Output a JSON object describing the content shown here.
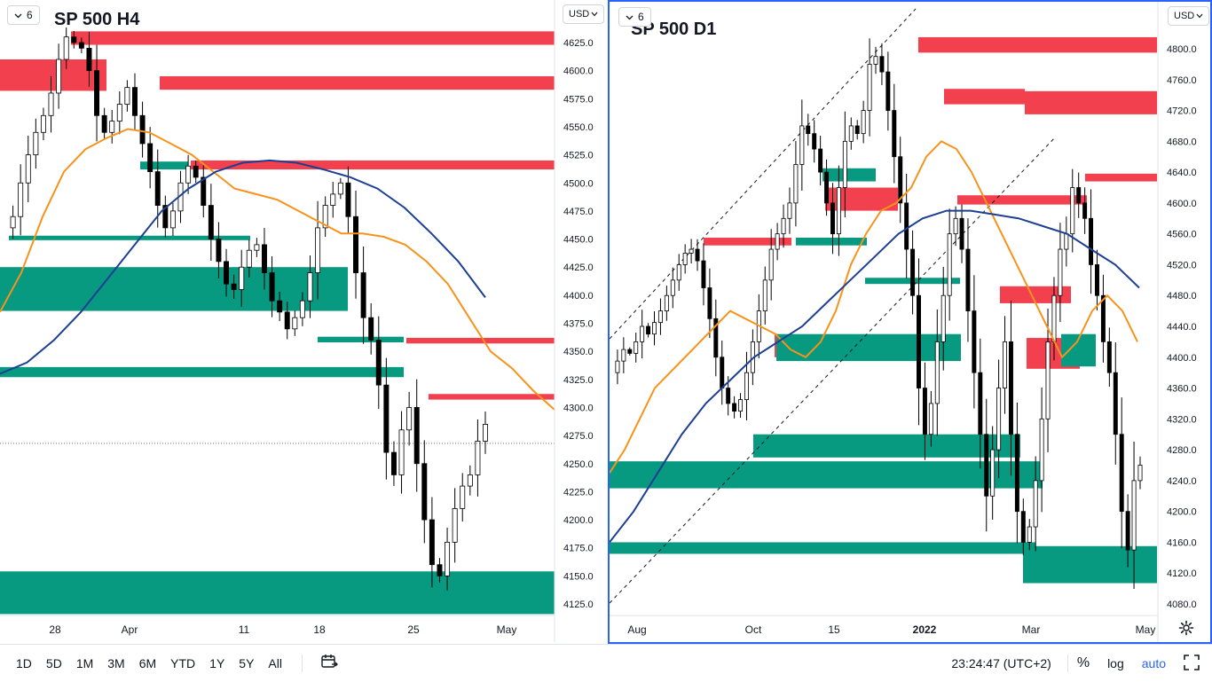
{
  "bottom_bar": {
    "ranges": [
      "1D",
      "5D",
      "1M",
      "3M",
      "6M",
      "YTD",
      "1Y",
      "5Y",
      "All"
    ],
    "clock": "23:24:47 (UTC+2)",
    "percent": "%",
    "log": "log",
    "auto": "auto"
  },
  "colors": {
    "supply_zone": "#f23645",
    "demand_zone": "#089981",
    "ema_fast": "#f7931a",
    "ema_slow": "#1c3f94",
    "candle": "#000000",
    "active_pane_border": "#2962ff",
    "auto_active": "#2962ff"
  },
  "icons": {
    "interval_dropdown": "chevron-down-icon",
    "compare": "calendar-range-icon",
    "fullscreen": "fullscreen-icon",
    "settings": "gear-icon"
  },
  "charts": [
    {
      "title": "SP 500 H4",
      "interval_label": "6",
      "currency": "USD",
      "price_ticks": [
        "4625.0",
        "4600.0",
        "4575.0",
        "4550.0",
        "4525.0",
        "4500.0",
        "4475.0",
        "4450.0",
        "4425.0",
        "4400.0",
        "4375.0",
        "4350.0",
        "4325.0",
        "4300.0",
        "4275.0",
        "4250.0",
        "4225.0",
        "4200.0",
        "4175.0",
        "4150.0",
        "4125.0"
      ],
      "time_ticks": [
        "28",
        "Apr",
        "11",
        "18",
        "25",
        "May"
      ]
    },
    {
      "title": "SP 500 D1",
      "interval_label": "6",
      "currency": "USD",
      "price_ticks": [
        "4800.0",
        "4760.0",
        "4720.0",
        "4680.0",
        "4640.0",
        "4600.0",
        "4560.0",
        "4520.0",
        "4480.0",
        "4440.0",
        "4400.0",
        "4360.0",
        "4320.0",
        "4280.0",
        "4240.0",
        "4200.0",
        "4160.0",
        "4120.0",
        "4080.0"
      ],
      "time_ticks": [
        "Aug",
        "Oct",
        "15",
        "2022",
        "Mar",
        "May"
      ]
    }
  ],
  "chart_data": [
    {
      "type": "candlestick",
      "title": "SP 500 H4",
      "ylim": [
        4115,
        4645
      ],
      "x_ticks": [
        "28",
        "Apr",
        "11",
        "18",
        "25",
        "May"
      ],
      "close_path": [
        4460,
        4470,
        4500,
        4525,
        4545,
        4560,
        4580,
        4610,
        4630,
        4625,
        4620,
        4600,
        4560,
        4545,
        4555,
        4570,
        4585,
        4560,
        4535,
        4510,
        4480,
        4460,
        4475,
        4500,
        4515,
        4505,
        4480,
        4450,
        4430,
        4410,
        4405,
        4425,
        4440,
        4445,
        4420,
        4395,
        4385,
        4370,
        4380,
        4395,
        4420,
        4460,
        4480,
        4490,
        4500,
        4470,
        4420,
        4380,
        4360,
        4320,
        4260,
        4240,
        4280,
        4300,
        4250,
        4200,
        4160,
        4150,
        4180,
        4210,
        4230,
        4240,
        4270,
        4285
      ],
      "indicators": {
        "ema_fast": [
          4385,
          4420,
          4470,
          4510,
          4530,
          4540,
          4548,
          4545,
          4535,
          4525,
          4510,
          4495,
          4490,
          4485,
          4475,
          4465,
          4455,
          4455,
          4452,
          4445,
          4430,
          4410,
          4380,
          4350,
          4335,
          4315,
          4298
        ],
        "ema_slow": [
          4330,
          4340,
          4360,
          4385,
          4415,
          4445,
          4475,
          4495,
          4510,
          4518,
          4520,
          4518,
          4512,
          4505,
          4495,
          4478,
          4455,
          4430,
          4398
        ]
      },
      "zones": [
        {
          "kind": "supply",
          "low": 4623,
          "high": 4635
        },
        {
          "kind": "supply",
          "low": 4582,
          "high": 4610
        },
        {
          "kind": "supply",
          "low": 4583,
          "high": 4595
        },
        {
          "kind": "supply",
          "low": 4512,
          "high": 4520
        },
        {
          "kind": "demand",
          "low": 4512,
          "high": 4519
        },
        {
          "kind": "demand",
          "low": 4449,
          "high": 4453
        },
        {
          "kind": "demand",
          "low": 4386,
          "high": 4425
        },
        {
          "kind": "demand",
          "low": 4358,
          "high": 4363
        },
        {
          "kind": "supply",
          "low": 4357,
          "high": 4362
        },
        {
          "kind": "demand",
          "low": 4327,
          "high": 4336
        },
        {
          "kind": "supply",
          "low": 4307,
          "high": 4312
        },
        {
          "kind": "demand",
          "low": 4116,
          "high": 4154
        }
      ],
      "last_price_line": 4268
    },
    {
      "type": "candlestick",
      "title": "SP 500 D1",
      "ylim": [
        4070,
        4830
      ],
      "x_ticks": [
        "Aug",
        "Oct",
        "15",
        "2022",
        "Mar",
        "May"
      ],
      "close_path": [
        4380,
        4395,
        4410,
        4405,
        4420,
        4440,
        4430,
        4445,
        4460,
        4480,
        4500,
        4520,
        4535,
        4540,
        4525,
        4490,
        4450,
        4400,
        4360,
        4340,
        4330,
        4345,
        4380,
        4420,
        4460,
        4500,
        4540,
        4560,
        4580,
        4600,
        4650,
        4700,
        4690,
        4670,
        4640,
        4600,
        4560,
        4620,
        4680,
        4700,
        4690,
        4720,
        4780,
        4790,
        4770,
        4720,
        4660,
        4600,
        4540,
        4480,
        4360,
        4300,
        4340,
        4420,
        4480,
        4560,
        4580,
        4540,
        4460,
        4380,
        4300,
        4220,
        4280,
        4360,
        4420,
        4300,
        4200,
        4160,
        4180,
        4240,
        4320,
        4420,
        4480,
        4540,
        4560,
        4620,
        4600,
        4580,
        4520,
        4480,
        4420,
        4380,
        4300,
        4200,
        4150,
        4240,
        4260
      ],
      "indicators": {
        "ema_fast": [
          4250,
          4280,
          4320,
          4360,
          4380,
          4400,
          4420,
          4440,
          4460,
          4450,
          4440,
          4430,
          4410,
          4400,
          4420,
          4460,
          4520,
          4560,
          4590,
          4600,
          4620,
          4660,
          4680,
          4670,
          4640,
          4600,
          4560,
          4520,
          4480,
          4440,
          4400,
          4420,
          4460,
          4480,
          4460,
          4420
        ],
        "ema_slow": [
          4160,
          4200,
          4250,
          4300,
          4340,
          4370,
          4400,
          4420,
          4440,
          4470,
          4500,
          4530,
          4560,
          4580,
          4590,
          4590,
          4585,
          4580,
          4570,
          4560,
          4540,
          4520,
          4490
        ]
      },
      "zones": [
        {
          "kind": "supply",
          "low": 4795,
          "high": 4815
        },
        {
          "kind": "supply",
          "low": 4728,
          "high": 4748
        },
        {
          "kind": "supply",
          "low": 4715,
          "high": 4745
        },
        {
          "kind": "supply",
          "low": 4628,
          "high": 4638
        },
        {
          "kind": "demand",
          "low": 4628,
          "high": 4645
        },
        {
          "kind": "supply",
          "low": 4598,
          "high": 4610
        },
        {
          "kind": "supply",
          "low": 4590,
          "high": 4620
        },
        {
          "kind": "supply",
          "low": 4545,
          "high": 4555
        },
        {
          "kind": "demand",
          "low": 4545,
          "high": 4555
        },
        {
          "kind": "demand",
          "low": 4495,
          "high": 4503
        },
        {
          "kind": "supply",
          "low": 4470,
          "high": 4492
        },
        {
          "kind": "supply",
          "low": 4385,
          "high": 4425
        },
        {
          "kind": "demand",
          "low": 4388,
          "high": 4430
        },
        {
          "kind": "supply",
          "low": 4400,
          "high": 4430
        },
        {
          "kind": "demand",
          "low": 4395,
          "high": 4430
        },
        {
          "kind": "demand",
          "low": 4270,
          "high": 4300
        },
        {
          "kind": "demand",
          "low": 4230,
          "high": 4265
        },
        {
          "kind": "demand",
          "low": 4145,
          "high": 4160
        },
        {
          "kind": "demand",
          "low": 4107,
          "high": 4155
        }
      ]
    }
  ]
}
